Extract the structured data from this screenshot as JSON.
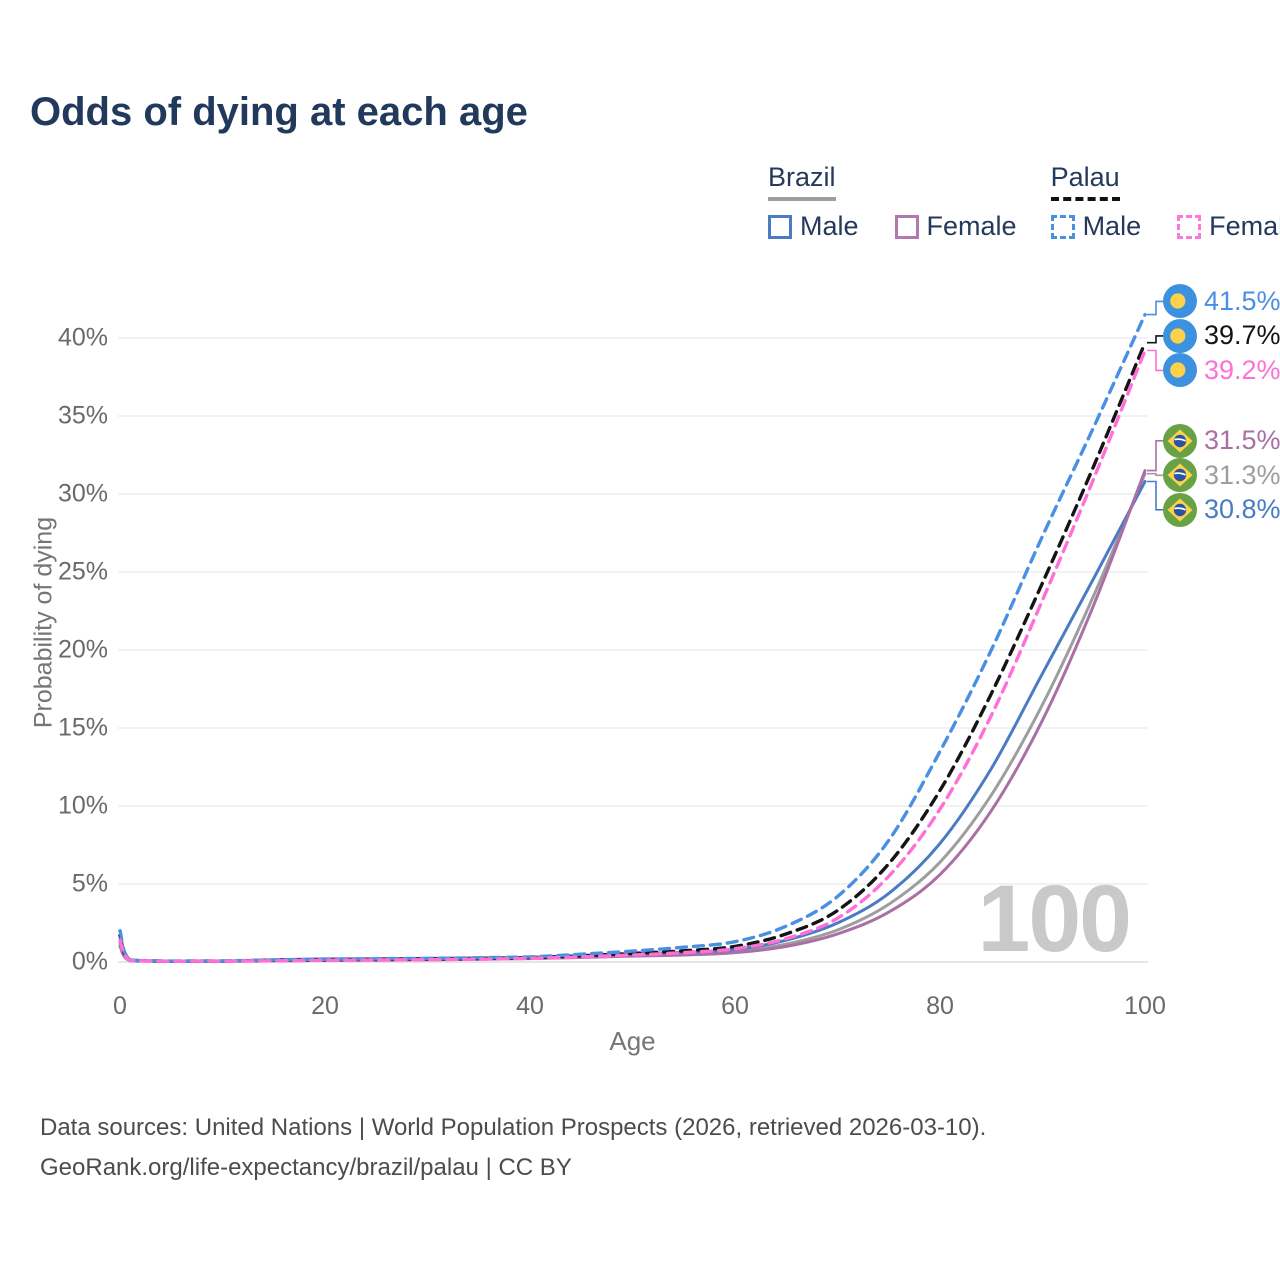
{
  "title": "Odds of dying at each age",
  "legend": {
    "groups": [
      {
        "country": "Brazil",
        "line_style": "solid",
        "underline_color": "#9e9e9e",
        "items": [
          {
            "label": "Male",
            "color": "#4a7bc4",
            "dashed": false
          },
          {
            "label": "Female",
            "color": "#b279ae",
            "dashed": false
          }
        ]
      },
      {
        "country": "Palau",
        "line_style": "dashed",
        "underline_color": "#111111",
        "items": [
          {
            "label": "Male",
            "color": "#4a90e2",
            "dashed": true
          },
          {
            "label": "Female",
            "color": "#ff77dd",
            "dashed": true
          }
        ]
      }
    ]
  },
  "chart_data": {
    "type": "line",
    "title": "Odds of dying at each age",
    "xlabel": "Age",
    "ylabel": "Probability of dying",
    "x_ticks": [
      0,
      20,
      40,
      60,
      80,
      100
    ],
    "y_ticks": [
      {
        "label": "0%",
        "value": 0
      },
      {
        "label": "5%",
        "value": 5
      },
      {
        "label": "10%",
        "value": 10
      },
      {
        "label": "15%",
        "value": 15
      },
      {
        "label": "20%",
        "value": 20
      },
      {
        "label": "25%",
        "value": 25
      },
      {
        "label": "30%",
        "value": 30
      },
      {
        "label": "35%",
        "value": 35
      },
      {
        "label": "40%",
        "value": 40
      }
    ],
    "xlim": [
      0,
      100
    ],
    "ylim": [
      0,
      43
    ],
    "grid": true,
    "legend_position": "top-right",
    "watermark": "100",
    "ages": [
      0,
      1,
      5,
      10,
      15,
      20,
      25,
      30,
      35,
      40,
      45,
      50,
      55,
      60,
      65,
      70,
      75,
      80,
      85,
      90,
      95,
      100
    ],
    "series": [
      {
        "name": "Brazil",
        "color": "#9e9e9e",
        "dashed": false,
        "flag": "brazil",
        "end_label": "31.3%",
        "end_value": 31.3,
        "values": [
          1.15,
          0.09,
          0.035,
          0.045,
          0.11,
          0.15,
          0.16,
          0.18,
          0.21,
          0.26,
          0.34,
          0.44,
          0.52,
          0.7,
          1.15,
          2.05,
          3.7,
          6.4,
          10.7,
          16.5,
          23.5,
          31.3
        ]
      },
      {
        "name": "Brazil Male",
        "color": "#4a7bc4",
        "dashed": false,
        "flag": "brazil",
        "end_label": "30.8%",
        "end_value": 30.8,
        "values": [
          1.3,
          0.1,
          0.04,
          0.05,
          0.14,
          0.2,
          0.21,
          0.23,
          0.26,
          0.3,
          0.4,
          0.52,
          0.62,
          0.8,
          1.4,
          2.5,
          4.4,
          7.6,
          12.4,
          18.5,
          24.6,
          30.8
        ]
      },
      {
        "name": "Brazil Female",
        "color": "#ab6fa5",
        "dashed": false,
        "flag": "brazil",
        "end_label": "31.5%",
        "end_value": 31.5,
        "values": [
          1.0,
          0.08,
          0.03,
          0.04,
          0.07,
          0.1,
          0.12,
          0.14,
          0.17,
          0.22,
          0.29,
          0.38,
          0.45,
          0.6,
          1.0,
          1.8,
          3.2,
          5.6,
          9.7,
          15.5,
          22.9,
          31.5
        ]
      },
      {
        "name": "Palau",
        "color": "#141414",
        "dashed": true,
        "flag": "palau",
        "end_label": "39.7%",
        "end_value": 39.7,
        "values": [
          1.7,
          0.13,
          0.05,
          0.06,
          0.11,
          0.14,
          0.16,
          0.19,
          0.22,
          0.28,
          0.4,
          0.55,
          0.72,
          1.0,
          1.8,
          3.3,
          6.3,
          11.0,
          17.2,
          24.3,
          31.8,
          39.7
        ]
      },
      {
        "name": "Palau Male",
        "color": "#4a90e2",
        "dashed": true,
        "flag": "palau",
        "end_label": "41.5%",
        "end_value": 41.5,
        "values": [
          2.0,
          0.15,
          0.06,
          0.07,
          0.13,
          0.17,
          0.2,
          0.23,
          0.27,
          0.33,
          0.5,
          0.7,
          0.95,
          1.3,
          2.3,
          4.2,
          7.8,
          13.5,
          20.0,
          27.3,
          34.3,
          41.5
        ]
      },
      {
        "name": "Palau Female",
        "color": "#ff70d6",
        "dashed": true,
        "flag": "palau",
        "end_label": "39.2%",
        "end_value": 39.2,
        "values": [
          1.4,
          0.11,
          0.04,
          0.05,
          0.08,
          0.11,
          0.13,
          0.15,
          0.18,
          0.24,
          0.33,
          0.45,
          0.6,
          0.85,
          1.5,
          2.8,
          5.5,
          9.8,
          15.8,
          23.2,
          31.0,
          39.2
        ]
      }
    ]
  },
  "footer": {
    "line1": "Data sources: United Nations | World Population Prospects (2026, retrieved 2026-03-10).",
    "line2": "GeoRank.org/life-expectancy/brazil/palau | CC BY"
  }
}
